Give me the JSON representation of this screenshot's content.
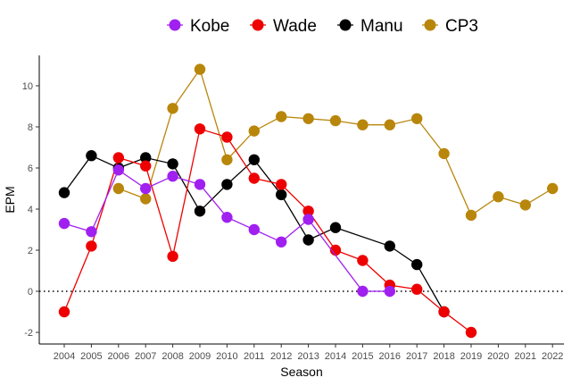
{
  "chart_data": {
    "type": "line",
    "title": "",
    "xlabel": "Season",
    "ylabel": "EPM",
    "xlim": [
      2004,
      2022
    ],
    "ylim": [
      -2.5,
      11.3
    ],
    "x_ticks": [
      "2004",
      "2005",
      "2006",
      "2007",
      "2008",
      "2009",
      "2010",
      "2011",
      "2012",
      "2013",
      "2014",
      "2015",
      "2016",
      "2017",
      "2018",
      "2019",
      "2020",
      "2021",
      "2022"
    ],
    "y_ticks": [
      "-2",
      "0",
      "2",
      "4",
      "6",
      "8",
      "10"
    ],
    "reference_line": {
      "y": 0,
      "style": "dotted"
    },
    "legend_position": "top",
    "series": [
      {
        "name": "Kobe",
        "color": "#a020f0",
        "x": [
          2004,
          2005,
          2006,
          2007,
          2008,
          2009,
          2010,
          2011,
          2012,
          2013,
          2015,
          2016
        ],
        "y": [
          3.3,
          2.9,
          5.9,
          5.0,
          5.6,
          5.2,
          3.6,
          3.0,
          2.4,
          3.5,
          0.0,
          0.0
        ]
      },
      {
        "name": "Wade",
        "color": "#ee0000",
        "x": [
          2004,
          2005,
          2006,
          2007,
          2008,
          2009,
          2010,
          2011,
          2012,
          2013,
          2014,
          2015,
          2016,
          2017,
          2018,
          2019
        ],
        "y": [
          -1.0,
          2.2,
          6.5,
          6.1,
          1.7,
          7.9,
          7.5,
          5.5,
          5.2,
          3.9,
          2.0,
          1.5,
          0.3,
          0.1,
          -1.0,
          -2.0
        ]
      },
      {
        "name": "Manu",
        "color": "#000000",
        "x": [
          2004,
          2005,
          2006,
          2007,
          2008,
          2009,
          2010,
          2011,
          2012,
          2013,
          2014,
          2016,
          2017,
          2018
        ],
        "y": [
          4.8,
          6.6,
          6.0,
          6.5,
          6.2,
          3.9,
          5.2,
          6.4,
          4.7,
          2.5,
          3.1,
          2.2,
          1.3,
          -1.0
        ]
      },
      {
        "name": "CP3",
        "color": "#b8860b",
        "x": [
          2006,
          2007,
          2008,
          2009,
          2010,
          2011,
          2012,
          2013,
          2014,
          2015,
          2016,
          2017,
          2018,
          2019,
          2020,
          2021,
          2022
        ],
        "y": [
          5.0,
          4.5,
          8.9,
          10.8,
          6.4,
          7.8,
          8.5,
          8.4,
          8.3,
          8.1,
          8.1,
          8.4,
          6.7,
          3.7,
          4.6,
          4.2,
          5.0
        ]
      }
    ]
  }
}
